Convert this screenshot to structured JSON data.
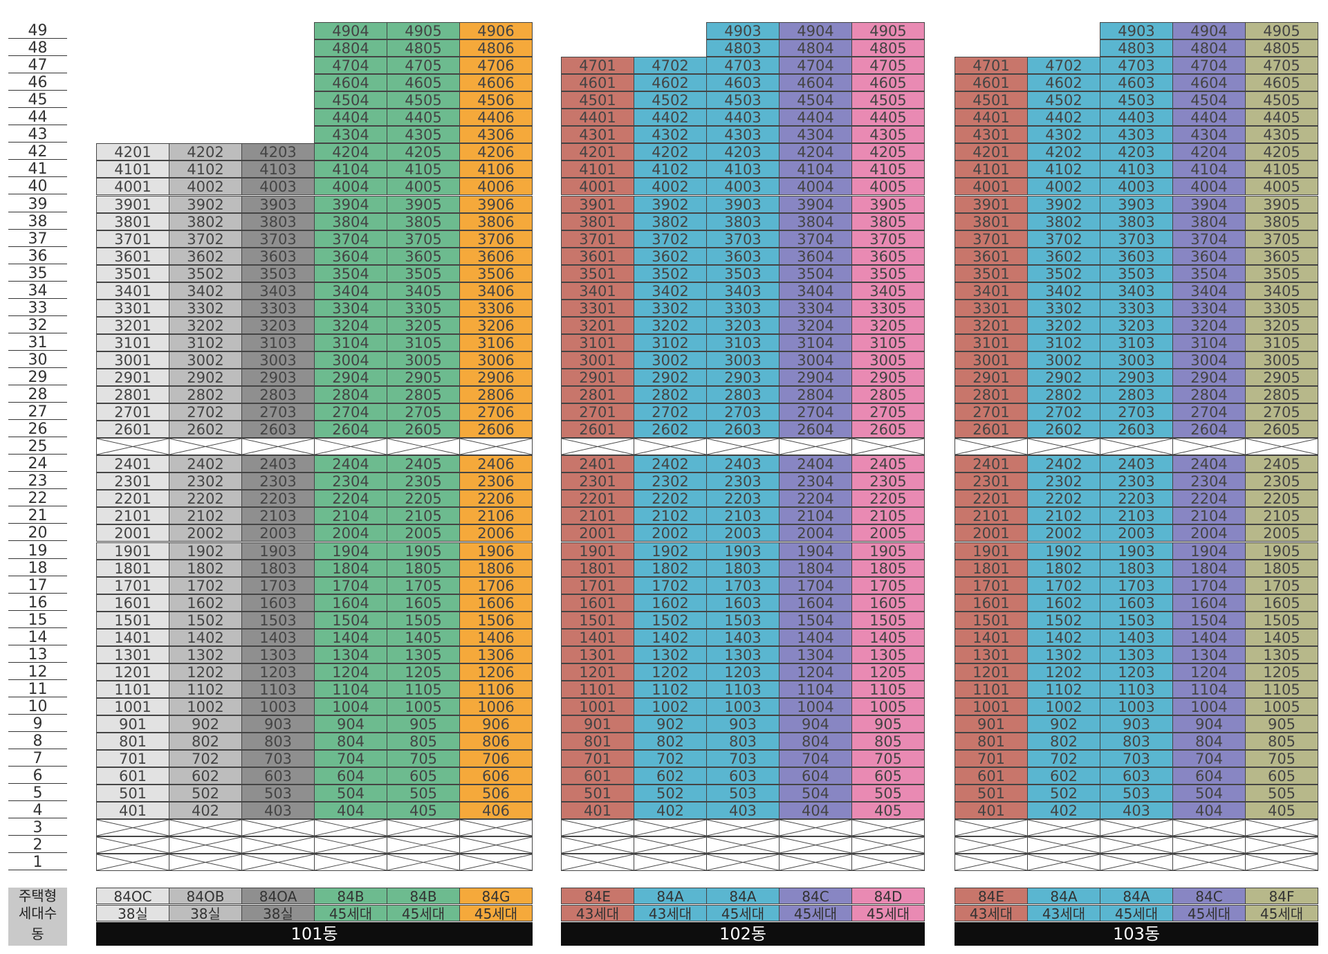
{
  "floors": [
    "49",
    "48",
    "47",
    "46",
    "45",
    "44",
    "43",
    "42",
    "41",
    "40",
    "39",
    "38",
    "37",
    "36",
    "35",
    "34",
    "33",
    "32",
    "31",
    "30",
    "29",
    "28",
    "27",
    "26",
    "25",
    "24",
    "23",
    "22",
    "21",
    "20",
    "19",
    "18",
    "17",
    "16",
    "15",
    "14",
    "13",
    "12",
    "11",
    "10",
    "9",
    "8",
    "7",
    "6",
    "5",
    "4",
    "3",
    "2",
    "1"
  ],
  "row_labels": {
    "type": "주택형",
    "count": "세대수",
    "dong": "동"
  },
  "buildings": [
    {
      "dong": "101동",
      "columns": [
        {
          "line": "01",
          "type": "84OC",
          "count": "38실",
          "color": "#e2e2e2",
          "top_floor": 42,
          "text_color": "#444"
        },
        {
          "line": "02",
          "type": "84OB",
          "count": "38실",
          "color": "#bdbdbd",
          "top_floor": 42,
          "text_color": "#444"
        },
        {
          "line": "03",
          "type": "84OA",
          "count": "38실",
          "color": "#8f8f8f",
          "top_floor": 42,
          "text_color": "#444"
        },
        {
          "line": "04",
          "type": "84B",
          "count": "45세대",
          "color": "#6dbb8f",
          "top_floor": 49,
          "text_color": "#444"
        },
        {
          "line": "05",
          "type": "84B",
          "count": "45세대",
          "color": "#6dbb8f",
          "top_floor": 49,
          "text_color": "#444"
        },
        {
          "line": "06",
          "type": "84G",
          "count": "45세대",
          "color": "#f5a93b",
          "top_floor": 49,
          "text_color": "#444"
        }
      ]
    },
    {
      "dong": "102동",
      "columns": [
        {
          "line": "01",
          "type": "84E",
          "count": "43세대",
          "color": "#c8766b",
          "top_floor": 47,
          "text_color": "#444"
        },
        {
          "line": "02",
          "type": "84A",
          "count": "43세대",
          "color": "#5ab6d0",
          "top_floor": 47,
          "text_color": "#444"
        },
        {
          "line": "03",
          "type": "84A",
          "count": "45세대",
          "color": "#5ab6d0",
          "top_floor": 49,
          "text_color": "#444",
          "top_lines": [
            "4903",
            "4803"
          ]
        },
        {
          "line": "04",
          "type": "84C",
          "count": "45세대",
          "color": "#8886c3",
          "top_floor": 49,
          "text_color": "#444",
          "top_lines": [
            "4904",
            "4804"
          ]
        },
        {
          "line": "05",
          "type": "84D",
          "count": "45세대",
          "color": "#e98ab3",
          "top_floor": 49,
          "text_color": "#444",
          "top_lines": [
            "4905",
            "4805"
          ]
        }
      ]
    },
    {
      "dong": "103동",
      "columns": [
        {
          "line": "01",
          "type": "84E",
          "count": "43세대",
          "color": "#c8766b",
          "top_floor": 47,
          "text_color": "#444"
        },
        {
          "line": "02",
          "type": "84A",
          "count": "43세대",
          "color": "#5ab6d0",
          "top_floor": 47,
          "text_color": "#444"
        },
        {
          "line": "03",
          "type": "84A",
          "count": "45세대",
          "color": "#5ab6d0",
          "top_floor": 49,
          "text_color": "#444",
          "top_lines": [
            "4903",
            "4803"
          ]
        },
        {
          "line": "04",
          "type": "84C",
          "count": "45세대",
          "color": "#8886c3",
          "top_floor": 49,
          "text_color": "#444",
          "top_lines": [
            "4904",
            "4804"
          ]
        },
        {
          "line": "05",
          "type": "84F",
          "count": "45세대",
          "color": "#b7b88a",
          "top_floor": 49,
          "text_color": "#444",
          "top_lines": [
            "4905",
            "4805"
          ]
        }
      ]
    }
  ]
}
